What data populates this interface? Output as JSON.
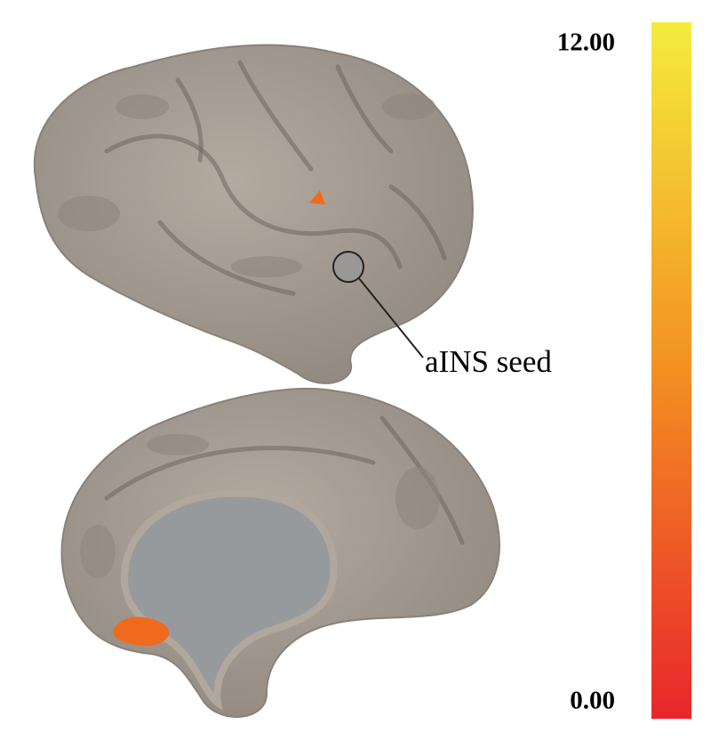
{
  "colorbar": {
    "lim": [
      0,
      12
    ],
    "ticks": [
      {
        "value": 0,
        "label": "0.00"
      },
      {
        "value": 12,
        "label": "12.00"
      }
    ],
    "colors": [
      "#e8262c",
      "#f39021",
      "#f4ec3c"
    ]
  },
  "annotation": "aINS seed"
}
